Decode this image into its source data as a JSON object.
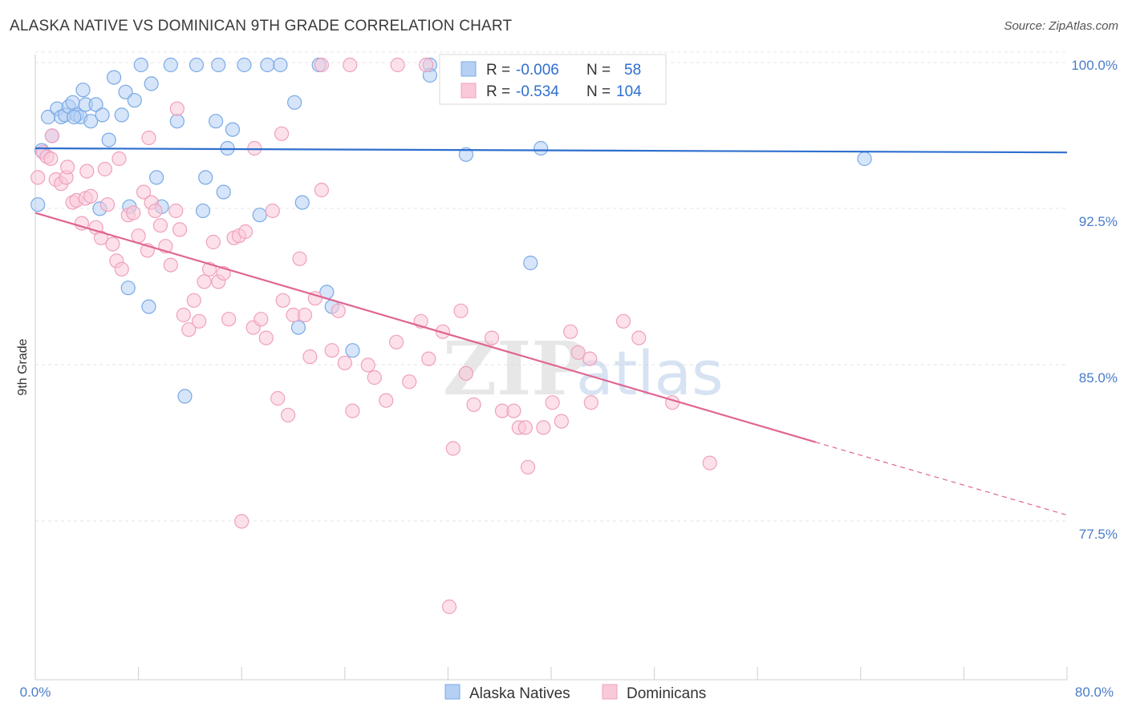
{
  "title": "ALASKA NATIVE VS DOMINICAN 9TH GRADE CORRELATION CHART",
  "source": "Source: ZipAtlas.com",
  "watermark": {
    "zip": "ZIP",
    "atlas": "atlas"
  },
  "chart_data": {
    "type": "scatter",
    "ylabel": "9th Grade",
    "xlim": [
      0,
      80
    ],
    "ylim": [
      70.5,
      100.5
    ],
    "x_tick_labels": [
      "0.0%",
      "80.0%"
    ],
    "y_ticks": [
      {
        "value": 100.0,
        "label": "100.0%"
      },
      {
        "value": 92.5,
        "label": "92.5%"
      },
      {
        "value": 85.0,
        "label": "85.0%"
      },
      {
        "value": 77.5,
        "label": "77.5%"
      }
    ],
    "grid": true,
    "legend_position": "top-center",
    "stats": [
      {
        "r_label": "R =",
        "r": "-0.006",
        "n_label": "N =",
        "n": "58"
      },
      {
        "r_label": "R =",
        "r": "-0.534",
        "n_label": "N =",
        "n": "104"
      }
    ],
    "bottom_legend": [
      "Alaska Natives",
      "Dominicans"
    ],
    "series": [
      {
        "name": "Alaska Natives",
        "color": "#7aaae6",
        "fill": "#b4d0f4",
        "line_color": "#2e6fce",
        "trend": {
          "x": [
            0,
            80
          ],
          "y": [
            96.0,
            95.8
          ]
        },
        "points": [
          [
            0.2,
            93.3
          ],
          [
            0.5,
            95.9
          ],
          [
            1.0,
            97.5
          ],
          [
            1.3,
            96.6
          ],
          [
            1.7,
            97.9
          ],
          [
            2.0,
            97.5
          ],
          [
            2.3,
            97.6
          ],
          [
            2.6,
            98.0
          ],
          [
            2.9,
            98.2
          ],
          [
            3.2,
            97.6
          ],
          [
            3.5,
            97.5
          ],
          [
            3.7,
            98.8
          ],
          [
            3.9,
            98.1
          ],
          [
            4.3,
            97.3
          ],
          [
            4.7,
            98.1
          ],
          [
            5.2,
            97.6
          ],
          [
            5.7,
            96.4
          ],
          [
            6.1,
            99.4
          ],
          [
            6.7,
            97.6
          ],
          [
            7.0,
            98.7
          ],
          [
            7.7,
            98.3
          ],
          [
            8.2,
            100.0
          ],
          [
            9.0,
            99.1
          ],
          [
            10.5,
            100.0
          ],
          [
            12.5,
            100.0
          ],
          [
            14.2,
            100.0
          ],
          [
            16.2,
            100.0
          ],
          [
            18.0,
            100.0
          ],
          [
            19.0,
            100.0
          ],
          [
            11.0,
            97.3
          ],
          [
            14.0,
            97.3
          ],
          [
            15.3,
            96.9
          ],
          [
            14.9,
            96.0
          ],
          [
            9.4,
            94.6
          ],
          [
            13.2,
            94.6
          ],
          [
            14.6,
            93.9
          ],
          [
            9.8,
            93.2
          ],
          [
            13.0,
            93.0
          ],
          [
            17.4,
            92.8
          ],
          [
            20.7,
            93.4
          ],
          [
            7.3,
            93.2
          ],
          [
            5.0,
            93.1
          ],
          [
            7.2,
            89.3
          ],
          [
            8.8,
            88.4
          ],
          [
            22.6,
            89.1
          ],
          [
            23.0,
            88.4
          ],
          [
            20.4,
            87.4
          ],
          [
            24.6,
            86.3
          ],
          [
            22.0,
            100.0
          ],
          [
            30.6,
            100.0
          ],
          [
            30.6,
            99.5
          ],
          [
            33.4,
            95.7
          ],
          [
            39.2,
            96.0
          ],
          [
            64.3,
            95.5
          ],
          [
            38.4,
            90.5
          ],
          [
            11.6,
            84.1
          ],
          [
            20.1,
            98.2
          ],
          [
            3.0,
            97.5
          ]
        ]
      },
      {
        "name": "Dominicans",
        "color": "#f0a0bc",
        "fill": "#f9c9d9",
        "line_color": "#e06592",
        "trend": {
          "x": [
            0,
            60.5
          ],
          "y": [
            92.9,
            81.9
          ]
        },
        "trend_dashed": {
          "x": [
            60.5,
            80
          ],
          "y": [
            81.9,
            78.4
          ]
        },
        "points": [
          [
            0.2,
            94.6
          ],
          [
            0.6,
            95.8
          ],
          [
            0.9,
            95.6
          ],
          [
            1.2,
            95.5
          ],
          [
            1.6,
            94.5
          ],
          [
            2.0,
            94.3
          ],
          [
            2.4,
            94.6
          ],
          [
            2.9,
            93.4
          ],
          [
            3.2,
            93.5
          ],
          [
            3.6,
            92.4
          ],
          [
            3.9,
            93.6
          ],
          [
            4.3,
            93.7
          ],
          [
            4.7,
            92.2
          ],
          [
            5.1,
            91.7
          ],
          [
            5.6,
            93.3
          ],
          [
            6.0,
            91.4
          ],
          [
            6.3,
            90.6
          ],
          [
            6.7,
            90.2
          ],
          [
            7.2,
            92.8
          ],
          [
            7.6,
            92.9
          ],
          [
            8.0,
            91.8
          ],
          [
            8.4,
            93.9
          ],
          [
            8.7,
            91.1
          ],
          [
            9.0,
            93.4
          ],
          [
            9.3,
            93.0
          ],
          [
            9.7,
            92.3
          ],
          [
            10.1,
            91.3
          ],
          [
            10.5,
            90.4
          ],
          [
            10.9,
            93.0
          ],
          [
            11.2,
            92.1
          ],
          [
            11.5,
            88.0
          ],
          [
            11.9,
            87.3
          ],
          [
            12.3,
            88.7
          ],
          [
            12.7,
            87.7
          ],
          [
            13.1,
            89.6
          ],
          [
            13.5,
            90.2
          ],
          [
            13.8,
            91.5
          ],
          [
            14.2,
            89.6
          ],
          [
            14.6,
            90.0
          ],
          [
            15.0,
            87.8
          ],
          [
            15.4,
            91.7
          ],
          [
            15.8,
            91.8
          ],
          [
            16.3,
            92.0
          ],
          [
            16.9,
            87.4
          ],
          [
            17.5,
            87.8
          ],
          [
            17.9,
            86.9
          ],
          [
            18.4,
            93.0
          ],
          [
            18.8,
            84.0
          ],
          [
            19.2,
            88.7
          ],
          [
            19.6,
            83.2
          ],
          [
            20.0,
            88.0
          ],
          [
            20.5,
            90.7
          ],
          [
            20.9,
            88.0
          ],
          [
            21.3,
            86.0
          ],
          [
            21.7,
            88.8
          ],
          [
            22.2,
            94.0
          ],
          [
            23.0,
            86.3
          ],
          [
            23.5,
            88.2
          ],
          [
            24.0,
            85.7
          ],
          [
            24.6,
            83.4
          ],
          [
            25.8,
            85.6
          ],
          [
            26.3,
            85.0
          ],
          [
            27.2,
            83.9
          ],
          [
            28.0,
            86.7
          ],
          [
            29.0,
            84.8
          ],
          [
            29.9,
            87.7
          ],
          [
            30.5,
            85.9
          ],
          [
            31.6,
            87.2
          ],
          [
            32.4,
            81.6
          ],
          [
            33.0,
            88.2
          ],
          [
            33.4,
            85.2
          ],
          [
            34.0,
            83.7
          ],
          [
            35.4,
            86.9
          ],
          [
            36.2,
            83.4
          ],
          [
            37.1,
            83.4
          ],
          [
            37.5,
            82.6
          ],
          [
            38.0,
            82.6
          ],
          [
            38.2,
            80.7
          ],
          [
            39.4,
            82.6
          ],
          [
            40.1,
            83.8
          ],
          [
            40.8,
            82.9
          ],
          [
            41.5,
            87.2
          ],
          [
            42.1,
            86.2
          ],
          [
            43.0,
            85.9
          ],
          [
            45.6,
            87.7
          ],
          [
            46.8,
            86.9
          ],
          [
            49.4,
            83.8
          ],
          [
            52.3,
            80.9
          ],
          [
            32.1,
            74.0
          ],
          [
            16.0,
            78.1
          ],
          [
            28.1,
            100.0
          ],
          [
            30.3,
            100.0
          ],
          [
            24.4,
            100.0
          ],
          [
            22.2,
            100.0
          ],
          [
            19.1,
            96.7
          ],
          [
            17.0,
            96.0
          ],
          [
            11.0,
            97.9
          ],
          [
            8.8,
            96.5
          ],
          [
            6.5,
            95.5
          ],
          [
            5.4,
            95.0
          ],
          [
            4.0,
            94.9
          ],
          [
            2.5,
            95.1
          ],
          [
            1.3,
            96.6
          ],
          [
            43.1,
            83.8
          ]
        ]
      }
    ]
  }
}
